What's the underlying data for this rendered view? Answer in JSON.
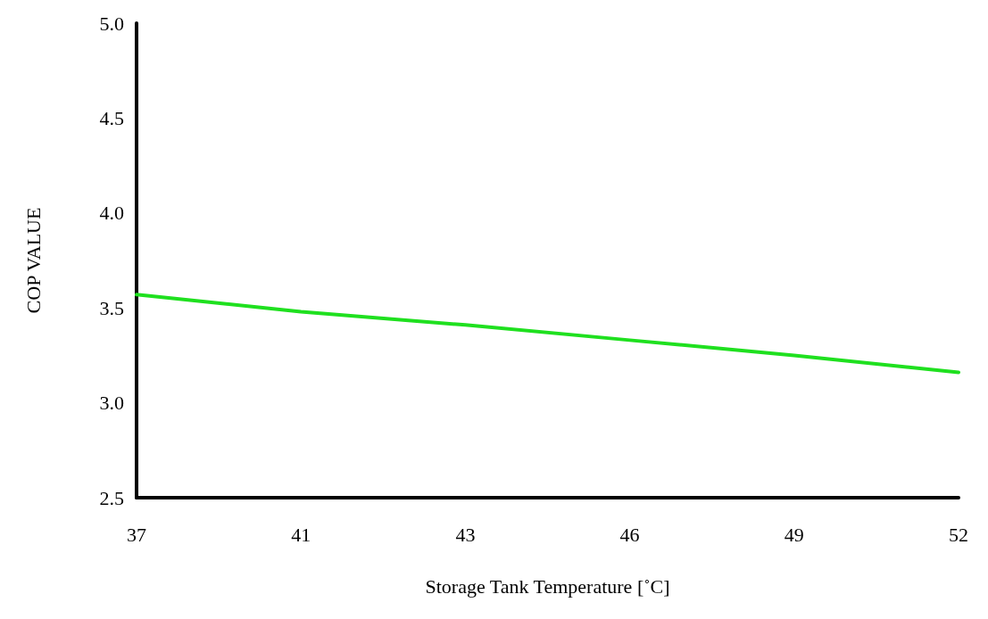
{
  "chart_data": {
    "type": "line",
    "xlabel": "Storage Tank Temperature [˚C]",
    "ylabel": "COP VALUE",
    "categories": [
      "37",
      "41",
      "43",
      "46",
      "49",
      "52"
    ],
    "series": [
      {
        "color": "#1fe01f",
        "values": [
          3.57,
          3.48,
          3.41,
          3.33,
          3.25,
          3.16
        ]
      }
    ],
    "ylim": [
      2.5,
      5
    ],
    "yticks": [
      {
        "value": 2.5,
        "label": "2.5"
      },
      {
        "value": 3,
        "label": "3.0"
      },
      {
        "value": 3.5,
        "label": "3.5"
      },
      {
        "value": 4,
        "label": "4.0"
      },
      {
        "value": 4.5,
        "label": "4.5"
      },
      {
        "value": 5,
        "label": "5.0"
      }
    ],
    "grid": false,
    "marker": "none",
    "line_style": "solid"
  }
}
